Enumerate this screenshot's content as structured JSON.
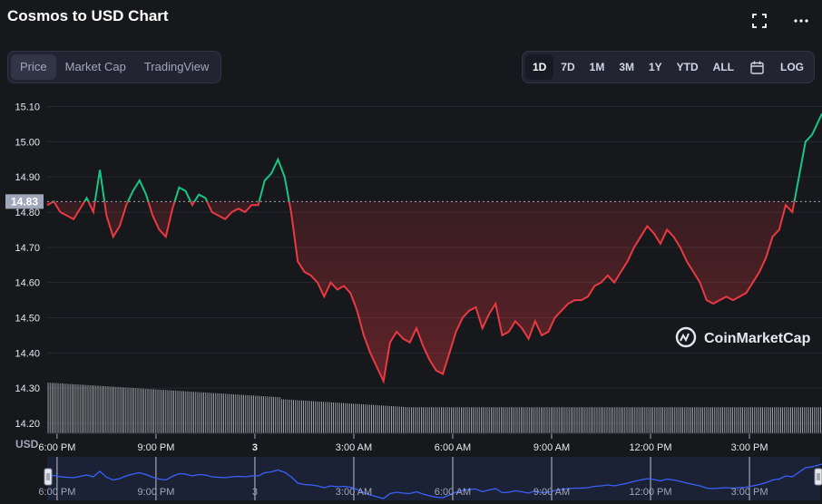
{
  "header": {
    "title": "Cosmos to USD Chart"
  },
  "tabs": [
    {
      "label": "Price",
      "active": true
    },
    {
      "label": "Market Cap",
      "active": false
    },
    {
      "label": "TradingView",
      "active": false
    }
  ],
  "ranges": [
    {
      "label": "1D",
      "active": true
    },
    {
      "label": "7D",
      "active": false
    },
    {
      "label": "1M",
      "active": false
    },
    {
      "label": "3M",
      "active": false
    },
    {
      "label": "1Y",
      "active": false
    },
    {
      "label": "YTD",
      "active": false
    },
    {
      "label": "ALL",
      "active": false
    }
  ],
  "log_label": "LOG",
  "icons": {
    "fullscreen": "fullscreen-icon",
    "more": "more-icon",
    "calendar": "calendar-icon",
    "watermark": "coinmarketcap-logo"
  },
  "watermark": "CoinMarketCap",
  "currency_label": "USD",
  "current_price_label": "14.83",
  "colors": {
    "up": "#16c784",
    "down": "#ea3943",
    "background": "#17181b",
    "grid": "#222531",
    "navigator": "#3861fb"
  },
  "chart_data": {
    "type": "line",
    "title": "Cosmos to USD Chart",
    "xlabel": "",
    "ylabel": "USD",
    "ylim": [
      14.2,
      15.12
    ],
    "yticks": [
      15.1,
      15.0,
      14.9,
      14.8,
      14.7,
      14.6,
      14.5,
      14.4,
      14.3,
      14.2
    ],
    "ytick_labels": [
      "15.10",
      "15.00",
      "14.90",
      "14.80",
      "14.70",
      "14.60",
      "14.50",
      "14.40",
      "14.30",
      "14.20"
    ],
    "xlim": [
      17.7,
      41.2
    ],
    "xticks": [
      18,
      21,
      24,
      27,
      30,
      33,
      36,
      39
    ],
    "xtick_labels": [
      "6:00 PM",
      "9:00 PM",
      "3",
      "3:00 AM",
      "6:00 AM",
      "9:00 AM",
      "12:00 PM",
      "3:00 PM"
    ],
    "reference_price": 14.83,
    "grid": true,
    "series": [
      {
        "x": [
          17.7,
          17.9,
          18.1,
          18.3,
          18.5,
          18.7,
          18.9,
          19.1,
          19.3,
          19.5,
          19.7,
          19.9,
          20.1,
          20.3,
          20.5,
          20.7,
          20.9,
          21.1,
          21.3,
          21.5,
          21.7,
          21.9,
          22.1,
          22.3,
          22.5,
          22.7,
          22.9,
          23.1,
          23.3,
          23.5,
          23.7,
          23.9,
          24.1,
          24.3,
          24.5,
          24.7,
          24.9,
          25.1,
          25.3,
          25.5,
          25.7,
          25.9,
          26.1,
          26.3,
          26.5,
          26.7,
          26.9,
          27.1,
          27.3,
          27.5,
          27.7,
          27.9,
          28.1,
          28.3,
          28.5,
          28.7,
          28.9,
          29.1,
          29.3,
          29.5,
          29.7,
          29.9,
          30.1,
          30.3,
          30.5,
          30.7,
          30.9,
          31.1,
          31.3,
          31.5,
          31.7,
          31.9,
          32.1,
          32.3,
          32.5,
          32.7,
          32.9,
          33.1,
          33.3,
          33.5,
          33.7,
          33.9,
          34.1,
          34.3,
          34.5,
          34.7,
          34.9,
          35.1,
          35.3,
          35.5,
          35.7,
          35.9,
          36.1,
          36.3,
          36.5,
          36.7,
          36.9,
          37.1,
          37.3,
          37.5,
          37.7,
          37.9,
          38.1,
          38.3,
          38.5,
          38.7,
          38.9,
          39.1,
          39.3,
          39.5,
          39.7,
          39.9,
          40.1,
          40.3,
          40.5,
          40.7,
          40.9,
          41.2
        ],
        "y": [
          14.82,
          14.83,
          14.8,
          14.79,
          14.78,
          14.81,
          14.84,
          14.8,
          14.92,
          14.79,
          14.73,
          14.76,
          14.82,
          14.86,
          14.89,
          14.85,
          14.79,
          14.75,
          14.73,
          14.81,
          14.87,
          14.86,
          14.82,
          14.85,
          14.84,
          14.8,
          14.79,
          14.78,
          14.8,
          14.81,
          14.8,
          14.82,
          14.82,
          14.89,
          14.91,
          14.95,
          14.9,
          14.8,
          14.66,
          14.63,
          14.62,
          14.6,
          14.56,
          14.6,
          14.58,
          14.59,
          14.57,
          14.52,
          14.45,
          14.4,
          14.36,
          14.32,
          14.43,
          14.46,
          14.44,
          14.43,
          14.47,
          14.42,
          14.38,
          14.35,
          14.34,
          14.4,
          14.46,
          14.5,
          14.52,
          14.53,
          14.47,
          14.51,
          14.54,
          14.45,
          14.46,
          14.49,
          14.47,
          14.44,
          14.49,
          14.45,
          14.46,
          14.5,
          14.52,
          14.54,
          14.55,
          14.55,
          14.56,
          14.59,
          14.6,
          14.62,
          14.6,
          14.63,
          14.66,
          14.7,
          14.73,
          14.76,
          14.74,
          14.71,
          14.75,
          14.73,
          14.7,
          14.66,
          14.63,
          14.6,
          14.55,
          14.54,
          14.55,
          14.56,
          14.55,
          14.56,
          14.57,
          14.6,
          14.63,
          14.67,
          14.73,
          14.75,
          14.82,
          14.8,
          14.9,
          15.0,
          15.02,
          15.08
        ]
      }
    ]
  }
}
